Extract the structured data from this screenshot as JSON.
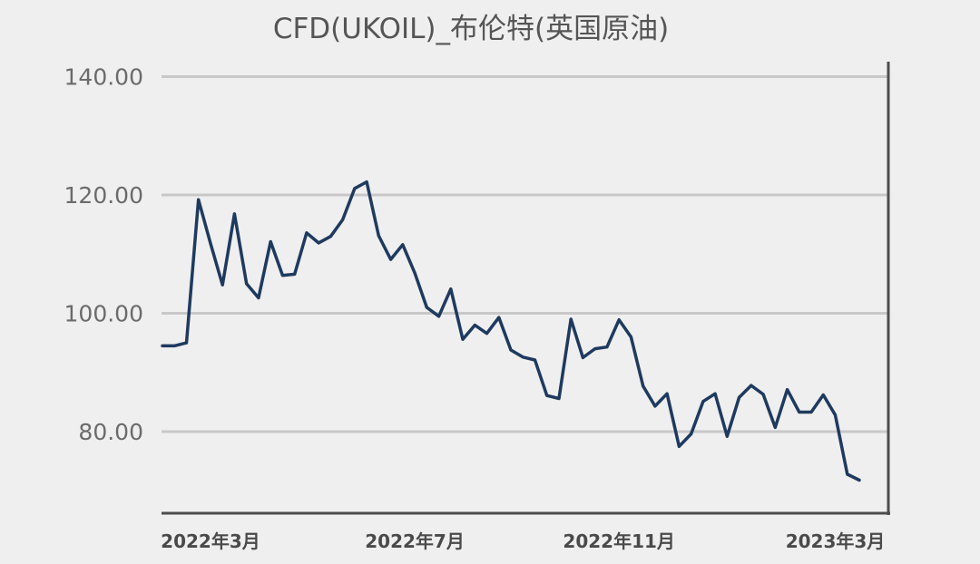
{
  "chart_data": {
    "type": "line",
    "title": "CFD(UKOIL)_布伦特(英国原油)",
    "ylim": [
      65,
      145
    ],
    "y_ticks": [
      {
        "value": 80,
        "label": "80.00"
      },
      {
        "value": 100,
        "label": "100.00"
      },
      {
        "value": 120,
        "label": "120.00"
      },
      {
        "value": 140,
        "label": "140.00"
      }
    ],
    "x_ticks": [
      {
        "index": 4,
        "label": "2022年3月"
      },
      {
        "index": 21,
        "label": "2022年7月"
      },
      {
        "index": 38,
        "label": "2022年11月"
      },
      {
        "index": 56,
        "label": "2023年3月"
      }
    ],
    "grid": true,
    "legend": "none",
    "line_color": "#1f3a5f",
    "series": [
      {
        "values": [
          94.5,
          94.5,
          95.0,
          119.2,
          111.8,
          104.8,
          116.8,
          105.0,
          102.6,
          112.1,
          106.4,
          106.6,
          113.6,
          111.9,
          113.0,
          115.8,
          121.1,
          122.2,
          113.1,
          109.1,
          111.6,
          106.8,
          101.0,
          99.5,
          104.1,
          95.6,
          98.0,
          96.6,
          99.3,
          93.8,
          92.6,
          92.1,
          86.1,
          85.6,
          99.0,
          92.5,
          94.0,
          94.3,
          98.9,
          96.0,
          87.7,
          84.3,
          86.4,
          77.5,
          79.6,
          85.1,
          86.4,
          79.2,
          85.8,
          87.8,
          86.3,
          80.7,
          87.1,
          83.3,
          83.3,
          86.2,
          82.8,
          72.8,
          71.8
        ]
      }
    ]
  }
}
